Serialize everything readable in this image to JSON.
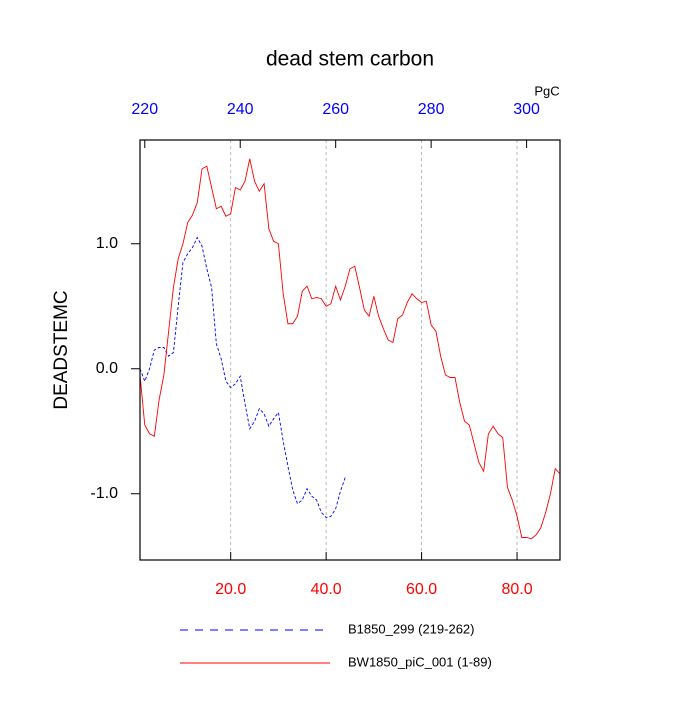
{
  "chart_data": {
    "type": "line",
    "title": "dead stem carbon",
    "ylabel": "DEADSTEMC",
    "x2label": "PgC",
    "xlim": [
      1,
      89
    ],
    "xticks": [
      {
        "value": 20,
        "label": "20.0"
      },
      {
        "value": 40,
        "label": "40.0"
      },
      {
        "value": 60,
        "label": "60.0"
      },
      {
        "value": 80,
        "label": "80.0"
      }
    ],
    "xtick_color": "#ff0000",
    "x2lim": [
      219,
      307
    ],
    "x2ticks": [
      220,
      240,
      260,
      280,
      300
    ],
    "x2tick_color": "#0000ff",
    "ylim": [
      -1.53,
      1.83
    ],
    "yticks": [
      {
        "value": 1,
        "label": "1.0"
      },
      {
        "value": 0,
        "label": "0.0"
      },
      {
        "value": -1,
        "label": "-1.0"
      }
    ],
    "grid": true,
    "series": [
      {
        "name": "B1850_299 (219-262)",
        "color": "#0000ff",
        "dashed": true,
        "axis": "x2",
        "x": [
          219,
          220,
          221,
          222,
          223,
          224,
          225,
          226,
          227,
          228,
          229,
          230,
          231,
          232,
          233,
          234,
          235,
          236,
          237,
          238,
          239,
          240,
          241,
          242,
          243,
          244,
          245,
          246,
          247,
          248,
          249,
          250,
          251,
          252,
          253,
          254,
          255,
          256,
          257,
          258,
          259,
          260,
          261,
          262
        ],
        "values": [
          0.0,
          -0.1,
          0.0,
          0.15,
          0.17,
          0.17,
          0.1,
          0.13,
          0.5,
          0.85,
          0.92,
          0.97,
          1.05,
          0.98,
          0.8,
          0.65,
          0.2,
          0.08,
          -0.1,
          -0.15,
          -0.12,
          -0.06,
          -0.28,
          -0.48,
          -0.42,
          -0.32,
          -0.36,
          -0.46,
          -0.4,
          -0.35,
          -0.58,
          -0.78,
          -0.97,
          -1.08,
          -1.05,
          -0.96,
          -1.02,
          -1.05,
          -1.15,
          -1.19,
          -1.18,
          -1.12,
          -0.98,
          -0.87
        ]
      },
      {
        "name": "BW1850_piC_001 (1-89)",
        "color": "#ff0000",
        "dashed": false,
        "x": [
          1,
          2,
          3,
          4,
          5,
          6,
          7,
          8,
          9,
          10,
          11,
          12,
          13,
          14,
          15,
          16,
          17,
          18,
          19,
          20,
          21,
          22,
          23,
          24,
          25,
          26,
          27,
          28,
          29,
          30,
          31,
          32,
          33,
          34,
          35,
          36,
          37,
          38,
          39,
          40,
          41,
          42,
          43,
          44,
          45,
          46,
          47,
          48,
          49,
          50,
          51,
          52,
          53,
          54,
          55,
          56,
          57,
          58,
          59,
          60,
          61,
          62,
          63,
          64,
          65,
          66,
          67,
          68,
          69,
          70,
          71,
          72,
          73,
          74,
          75,
          76,
          77,
          78,
          79,
          80,
          81,
          82,
          83,
          84,
          85,
          86,
          87,
          88,
          89
        ],
        "values": [
          -0.05,
          -0.45,
          -0.52,
          -0.54,
          -0.25,
          -0.05,
          0.3,
          0.65,
          0.88,
          1.0,
          1.17,
          1.23,
          1.33,
          1.6,
          1.62,
          1.45,
          1.28,
          1.3,
          1.22,
          1.24,
          1.45,
          1.43,
          1.5,
          1.68,
          1.5,
          1.42,
          1.48,
          1.12,
          1.02,
          1.0,
          0.6,
          0.36,
          0.36,
          0.42,
          0.62,
          0.66,
          0.56,
          0.57,
          0.56,
          0.5,
          0.52,
          0.66,
          0.55,
          0.66,
          0.8,
          0.82,
          0.65,
          0.47,
          0.42,
          0.58,
          0.42,
          0.32,
          0.23,
          0.21,
          0.4,
          0.43,
          0.53,
          0.6,
          0.56,
          0.53,
          0.54,
          0.35,
          0.3,
          0.1,
          -0.05,
          -0.07,
          -0.07,
          -0.27,
          -0.42,
          -0.45,
          -0.6,
          -0.75,
          -0.82,
          -0.52,
          -0.46,
          -0.52,
          -0.55,
          -0.95,
          -1.05,
          -1.18,
          -1.35,
          -1.35,
          -1.36,
          -1.33,
          -1.27,
          -1.15,
          -1.0,
          -0.8,
          -0.84
        ]
      }
    ]
  }
}
